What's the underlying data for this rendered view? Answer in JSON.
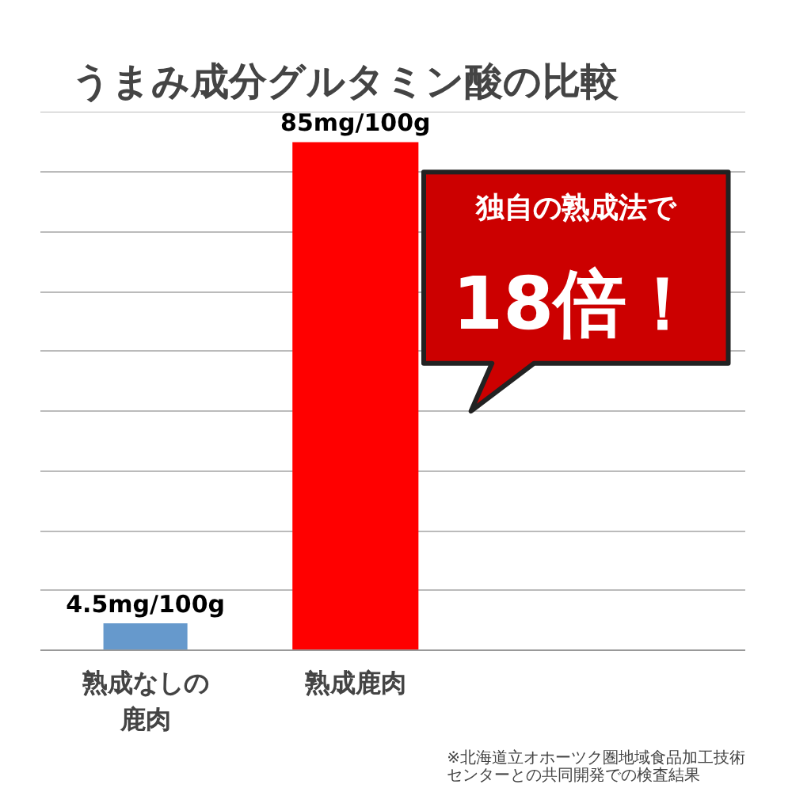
{
  "chart_data": {
    "type": "bar",
    "title": "うまみ成分グルタミン酸の比較",
    "categories": [
      "熟成なしの鹿肉",
      "熟成鹿肉"
    ],
    "values": [
      4.5,
      85
    ],
    "colors": [
      "#6699cc",
      "#ff0000"
    ],
    "value_labels": [
      "4.5mg/100g",
      "85mg/100g"
    ],
    "grid": "y",
    "tick_labels": "x",
    "annotations": [
      "独自の熟成法で",
      "18倍！",
      "※北海道立オホーツク圏地域食品加工技術センターとの共同開発での検査結果"
    ]
  }
}
